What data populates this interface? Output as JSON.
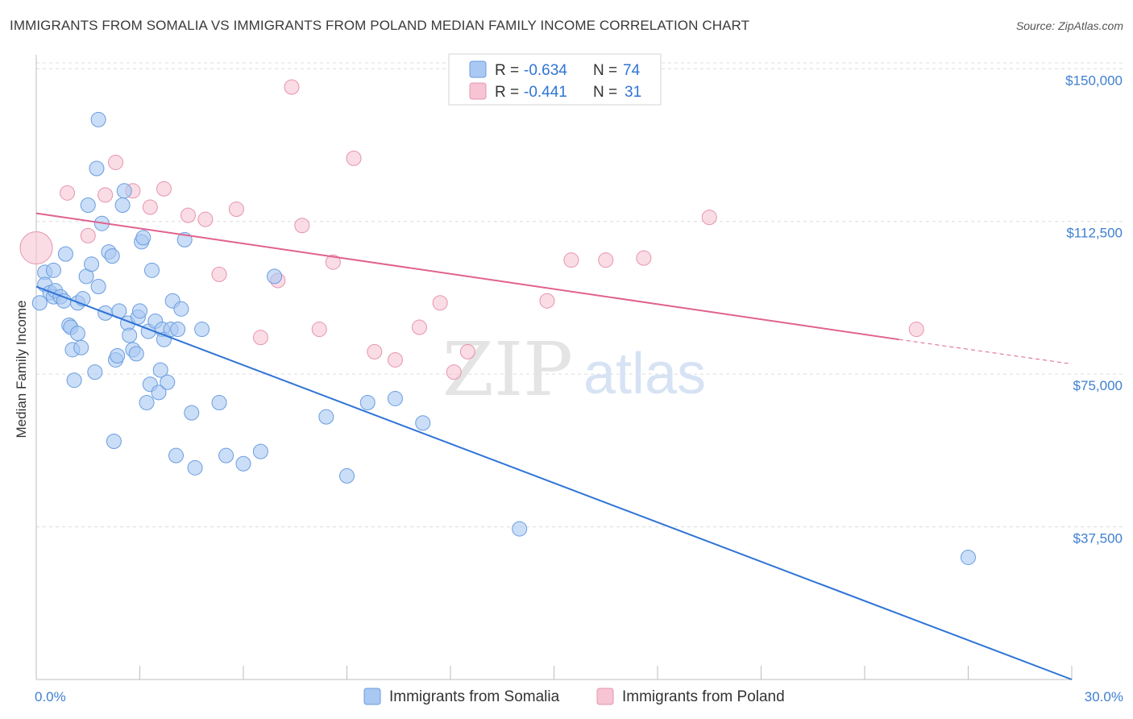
{
  "title": "IMMIGRANTS FROM SOMALIA VS IMMIGRANTS FROM POLAND MEDIAN FAMILY INCOME CORRELATION CHART",
  "source": "Source: ZipAtlas.com",
  "watermark": {
    "zip": "ZIP",
    "atlas": "atlas"
  },
  "colors": {
    "somalia_fill": "#a9c8f2",
    "somalia_stroke": "#6a9de0",
    "somalia_line": "#2f74d6",
    "poland_fill": "#f6c4d3",
    "poland_stroke": "#e694b0",
    "poland_line": "#e0628e",
    "grid": "#dcdcdc",
    "tick_text": "#3f7fd0"
  },
  "legend": {
    "rows": [
      {
        "r_label": "R =",
        "r_value": "-0.634",
        "n_label": "N =",
        "n_value": "74"
      },
      {
        "r_label": "R =",
        "r_value": "-0.441",
        "n_label": "N =",
        "n_value": "31"
      }
    ]
  },
  "chart_data": {
    "type": "scatter",
    "xlabel": "",
    "ylabel": "Median Family Income",
    "xlim": [
      0,
      30
    ],
    "ylim": [
      0,
      155000
    ],
    "x_tick_labels": {
      "left": "0.0%",
      "right": "30.0%"
    },
    "y_ticks": [
      {
        "value": 150000,
        "label": "$150,000"
      },
      {
        "value": 112500,
        "label": "$112,500"
      },
      {
        "value": 75000,
        "label": "$75,000"
      },
      {
        "value": 37500,
        "label": "$37,500"
      }
    ],
    "series": [
      {
        "name": "Immigrants from Somalia",
        "r": -0.634,
        "n": 74,
        "trend": {
          "x0": 0.0,
          "y0": 96500,
          "x1": 30.0,
          "y1": 0
        },
        "points": [
          [
            0.1,
            92500
          ],
          [
            0.25,
            100000
          ],
          [
            0.25,
            97000
          ],
          [
            0.4,
            95000
          ],
          [
            0.5,
            94000
          ],
          [
            0.5,
            100500
          ],
          [
            0.55,
            95500
          ],
          [
            0.7,
            94000
          ],
          [
            0.8,
            93000
          ],
          [
            0.85,
            104500
          ],
          [
            0.95,
            87000
          ],
          [
            1.0,
            86500
          ],
          [
            1.05,
            81000
          ],
          [
            1.1,
            73500
          ],
          [
            1.2,
            85000
          ],
          [
            1.2,
            92500
          ],
          [
            1.3,
            81500
          ],
          [
            1.35,
            93500
          ],
          [
            1.45,
            99000
          ],
          [
            1.5,
            116500
          ],
          [
            1.6,
            102000
          ],
          [
            1.7,
            75500
          ],
          [
            1.8,
            96500
          ],
          [
            1.9,
            112000
          ],
          [
            2.0,
            90000
          ],
          [
            2.1,
            105000
          ],
          [
            2.2,
            104000
          ],
          [
            2.25,
            58500
          ],
          [
            2.3,
            78500
          ],
          [
            2.35,
            79500
          ],
          [
            2.4,
            90500
          ],
          [
            2.5,
            116500
          ],
          [
            2.55,
            120000
          ],
          [
            2.65,
            87500
          ],
          [
            2.7,
            84500
          ],
          [
            2.8,
            81000
          ],
          [
            2.9,
            80000
          ],
          [
            2.95,
            89000
          ],
          [
            3.0,
            90500
          ],
          [
            3.05,
            107500
          ],
          [
            3.1,
            108500
          ],
          [
            3.2,
            68000
          ],
          [
            3.25,
            85500
          ],
          [
            3.3,
            72500
          ],
          [
            3.35,
            100500
          ],
          [
            3.45,
            88000
          ],
          [
            3.55,
            70500
          ],
          [
            3.6,
            76000
          ],
          [
            3.65,
            86000
          ],
          [
            3.7,
            83500
          ],
          [
            3.8,
            73000
          ],
          [
            3.9,
            86000
          ],
          [
            3.95,
            93000
          ],
          [
            4.05,
            55000
          ],
          [
            4.1,
            86000
          ],
          [
            4.2,
            91000
          ],
          [
            4.3,
            108000
          ],
          [
            4.5,
            65500
          ],
          [
            4.6,
            52000
          ],
          [
            4.8,
            86000
          ],
          [
            5.3,
            68000
          ],
          [
            5.5,
            55000
          ],
          [
            6.0,
            53000
          ],
          [
            6.5,
            56000
          ],
          [
            6.9,
            99000
          ],
          [
            8.4,
            64500
          ],
          [
            9.0,
            50000
          ],
          [
            9.6,
            68000
          ],
          [
            10.4,
            69000
          ],
          [
            11.2,
            63000
          ],
          [
            1.75,
            125500
          ],
          [
            1.8,
            137500
          ],
          [
            14.0,
            37000
          ],
          [
            27.0,
            30000
          ]
        ],
        "point_radius": 9
      },
      {
        "name": "Immigrants from Poland",
        "r": -0.441,
        "n": 31,
        "trend": {
          "x0": 0.0,
          "y0": 114500,
          "x1": 25.0,
          "y1": 83500
        },
        "trend_dashed": {
          "x0": 25.0,
          "y0": 83500,
          "x1": 30.0,
          "y1": 77500
        },
        "points": [
          [
            0.0,
            106000
          ],
          [
            0.9,
            119500
          ],
          [
            1.5,
            109000
          ],
          [
            2.0,
            119000
          ],
          [
            2.3,
            127000
          ],
          [
            2.8,
            120000
          ],
          [
            3.3,
            116000
          ],
          [
            3.7,
            120500
          ],
          [
            4.4,
            114000
          ],
          [
            4.9,
            113000
          ],
          [
            5.3,
            99500
          ],
          [
            5.8,
            115500
          ],
          [
            6.5,
            84000
          ],
          [
            7.0,
            98000
          ],
          [
            7.4,
            145500
          ],
          [
            7.7,
            111500
          ],
          [
            8.2,
            86000
          ],
          [
            8.6,
            102500
          ],
          [
            9.2,
            128000
          ],
          [
            9.8,
            80500
          ],
          [
            10.4,
            78500
          ],
          [
            11.1,
            86500
          ],
          [
            11.7,
            92500
          ],
          [
            12.1,
            75500
          ],
          [
            12.5,
            80500
          ],
          [
            14.8,
            93000
          ],
          [
            15.5,
            103000
          ],
          [
            16.5,
            103000
          ],
          [
            17.6,
            103500
          ],
          [
            19.5,
            113500
          ],
          [
            25.5,
            86000
          ]
        ],
        "point_radius": 9,
        "large_point": {
          "x": 0.0,
          "y": 106000,
          "radius": 20
        }
      }
    ]
  },
  "bottom_legend": [
    {
      "label": "Immigrants from Somalia"
    },
    {
      "label": "Immigrants from Poland"
    }
  ]
}
